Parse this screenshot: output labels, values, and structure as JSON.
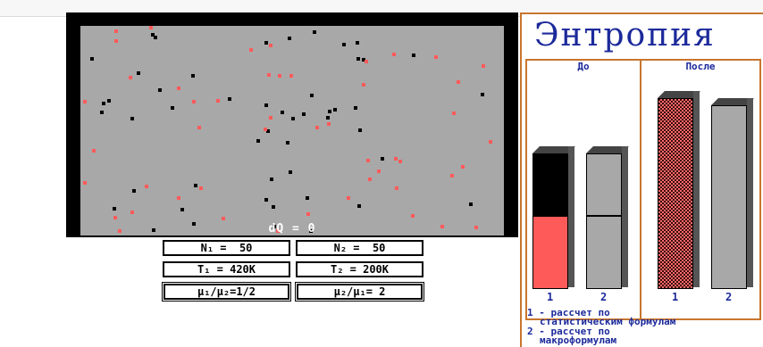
{
  "simulation": {
    "dq_text": "dQ = 0",
    "params": {
      "n1": "N₁ =  50",
      "n2": "N₂ =  50",
      "t1": "T₁ = 420K",
      "t2": "T₂ = 200K",
      "mu1": "μ₁/μ₂=1/2",
      "mu2": "μ₂/μ₁= 2"
    }
  },
  "entropy_panel": {
    "title": "Энтропия",
    "before_label": "До",
    "after_label": "После",
    "before_bars": [
      {
        "number": "1",
        "red_fraction": 0.52,
        "black_fraction": 0.48
      },
      {
        "number": "2",
        "lower_fraction": 0.52,
        "upper_fraction": 0.48
      }
    ],
    "after_bars": [
      {
        "number": "1"
      },
      {
        "number": "2"
      }
    ],
    "legend": {
      "line1": "1 - рассчет по",
      "line2": "статистическим формулам",
      "line3": "2 - рассчет по",
      "line4": "макроформулам"
    }
  },
  "colors": {
    "black_particle": "#000000",
    "red_particle": "#ff5a5a",
    "box_background": "#a8a8a8",
    "title_color": "#1c2a9b",
    "panel_border": "#c8752e"
  }
}
